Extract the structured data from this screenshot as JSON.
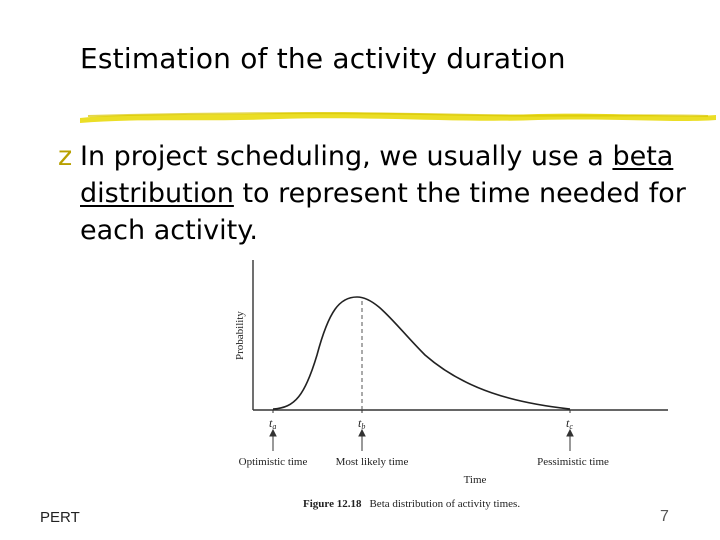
{
  "slide": {
    "title": "Estimation of the activity duration",
    "bullet": {
      "text_before": "In  project scheduling, we usually use a ",
      "underlined": "beta distribution",
      "text_after": " to represent the time needed for each activity."
    },
    "footer_left": "PERT",
    "page_number": "7"
  },
  "colors": {
    "rule": "#e8d800",
    "bullet": "#b8a000"
  },
  "figure": {
    "y_axis_label": "Probability",
    "x_axis_label": "Time",
    "caption_label": "Figure 12.18",
    "caption_text": "Beta distribution of activity times.",
    "ticks": [
      {
        "symbol": "t",
        "sub": "a",
        "label": "Optimistic time"
      },
      {
        "symbol": "t",
        "sub": "b",
        "label": "Most likely time"
      },
      {
        "symbol": "t",
        "sub": "c",
        "label": "Pessimistic time"
      }
    ]
  }
}
